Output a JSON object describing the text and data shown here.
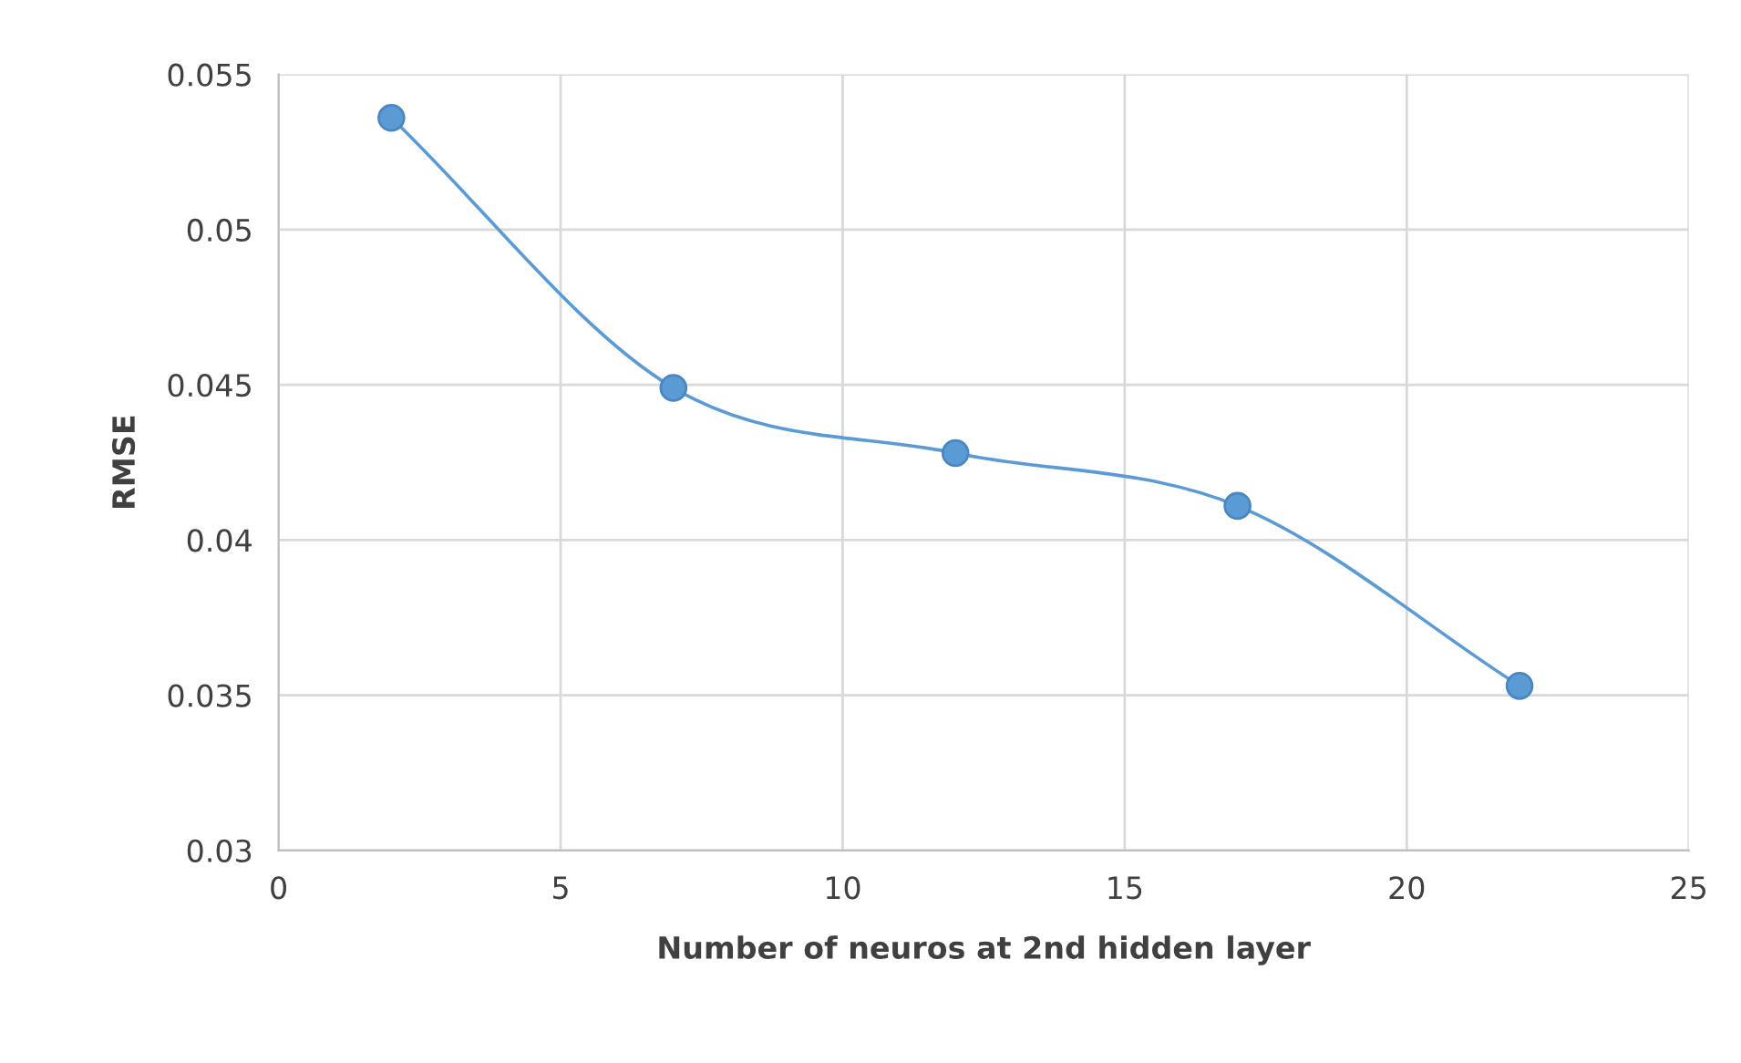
{
  "chart_data": {
    "type": "line",
    "xlabel": "Number of neuros at 2nd hidden layer",
    "ylabel": "RMSE",
    "x": [
      2,
      7,
      12,
      17,
      22
    ],
    "series": [
      {
        "color": "#5b9bd5",
        "values": [
          0.0536,
          0.0449,
          0.0428,
          0.0411,
          0.0353
        ]
      }
    ],
    "xlim": [
      0,
      25
    ],
    "xticks": [
      0,
      5,
      10,
      15,
      20,
      25
    ],
    "ylim": [
      0.03,
      0.055
    ],
    "yticks": [
      0.03,
      0.035,
      0.04,
      0.045,
      0.05,
      0.055
    ],
    "grid": true,
    "marker": "circle",
    "line_style": "solid"
  }
}
